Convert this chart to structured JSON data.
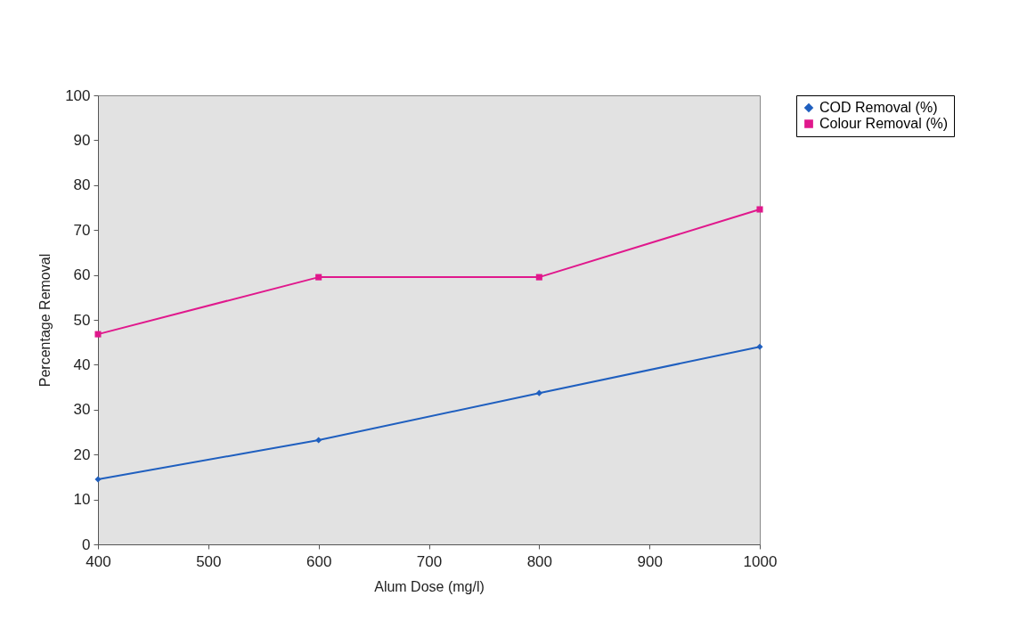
{
  "chart_data": {
    "type": "line",
    "xlabel": "Alum Dose (mg/l)",
    "ylabel": "Percentage Removal",
    "x": [
      400,
      600,
      800,
      1000
    ],
    "series": [
      {
        "name": "COD Removal (%)",
        "color": "#1f5fbf",
        "marker": "diamond",
        "values": [
          14.5,
          23.2,
          33.7,
          44.0
        ]
      },
      {
        "name": "Colour Removal (%)",
        "color": "#e0188c",
        "marker": "square",
        "values": [
          46.8,
          59.5,
          59.5,
          74.6
        ]
      }
    ],
    "xlim": [
      400,
      1000
    ],
    "xticks": [
      400,
      500,
      600,
      700,
      800,
      900,
      1000
    ],
    "ylim": [
      0,
      100
    ],
    "yticks": [
      0,
      10,
      20,
      30,
      40,
      50,
      60,
      70,
      80,
      90,
      100
    ],
    "legend": "right",
    "line_style": "solid"
  }
}
